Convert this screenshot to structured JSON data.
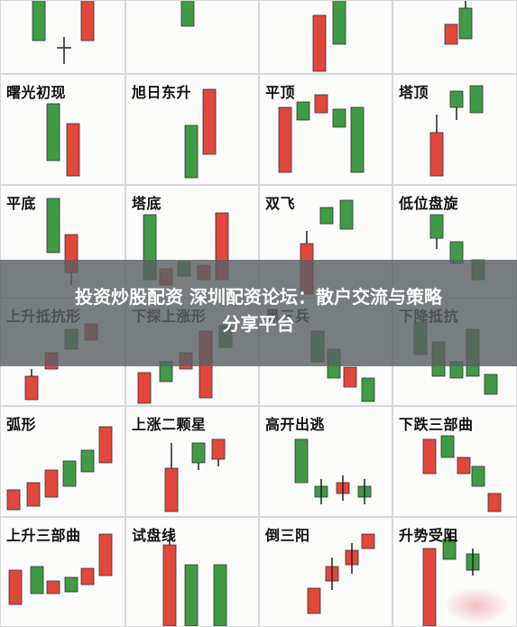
{
  "colors": {
    "up": "#e2473c",
    "down": "#3f9b45",
    "wick": "#222222",
    "grid": "#d8d8d8"
  },
  "banner": {
    "line1": "投资炒股配资 深圳配资论坛：散户交流与策略",
    "line2": "分享平台"
  },
  "patterns": [
    {
      "label": ""
    },
    {
      "label": ""
    },
    {
      "label": ""
    },
    {
      "label": ""
    },
    {
      "label": "曙光初现"
    },
    {
      "label": "旭日东升"
    },
    {
      "label": "平顶"
    },
    {
      "label": "塔顶"
    },
    {
      "label": "平底"
    },
    {
      "label": "塔底"
    },
    {
      "label": "双飞"
    },
    {
      "label": "低位盘旋"
    },
    {
      "label": "上升抵抗形"
    },
    {
      "label": "下探上涨形"
    },
    {
      "label": "黑三兵"
    },
    {
      "label": "下降抵抗"
    },
    {
      "label": "弧形"
    },
    {
      "label": "上涨二颗星"
    },
    {
      "label": "高开出逃"
    },
    {
      "label": "下跌三部曲"
    },
    {
      "label": "上升三部曲"
    },
    {
      "label": "试盘线"
    },
    {
      "label": "倒三阳"
    },
    {
      "label": "升势受阻"
    }
  ]
}
